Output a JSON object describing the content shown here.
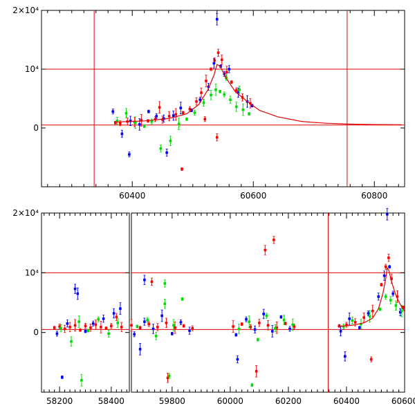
{
  "chart_data": [
    {
      "type": "scatter",
      "title": "",
      "xlabel": "",
      "ylabel": "",
      "grid": false,
      "xlim": [
        60250,
        60850
      ],
      "ylim": [
        -10000,
        20000
      ],
      "x_ticks": [
        60400,
        60600,
        60800
      ],
      "y_ticks": [
        0,
        10000,
        20000
      ],
      "y_tick_labels": [
        "0",
        "10⁴",
        "2×10⁴"
      ],
      "reference_lines": {
        "horizontal": [
          10000,
          500
        ],
        "vertical": [
          60337,
          60755
        ],
        "color": "#e00000"
      },
      "model_curve": {
        "color": "#e00000",
        "x": [
          60370,
          60420,
          60460,
          60490,
          60510,
          60525,
          60535,
          60540,
          60545,
          60555,
          60570,
          60590,
          60610,
          60640,
          60680,
          60720,
          60760,
          60800,
          60845
        ],
        "y": [
          1000,
          1200,
          1600,
          2400,
          4000,
          6500,
          9000,
          10800,
          10500,
          8500,
          6200,
          4500,
          3000,
          1900,
          1100,
          800,
          650,
          580,
          550
        ]
      },
      "series": [
        {
          "color": "#ff0000",
          "x": [
            60372,
            60380,
            60392,
            60404,
            60415,
            60426,
            60438,
            60450,
            60461,
            60472,
            60484,
            60495,
            60506,
            60514,
            60522,
            60530,
            60536,
            60542,
            60548,
            60556,
            60564,
            60572,
            60582,
            60595,
            60445,
            60482,
            60520,
            60540
          ],
          "y": [
            900,
            800,
            1100,
            1000,
            1300,
            1200,
            1500,
            1400,
            2000,
            2300,
            2600,
            3200,
            4500,
            6000,
            8000,
            10000,
            11500,
            12800,
            11600,
            9500,
            7800,
            6400,
            5200,
            4200,
            3500,
            -7000,
            1500,
            -1600
          ]
        },
        {
          "color": "#0000ff",
          "x": [
            60368,
            60383,
            60397,
            60412,
            60427,
            60440,
            60452,
            60468,
            60480,
            60498,
            60512,
            60526,
            60535,
            60540,
            60546,
            60552,
            60560,
            60575,
            60590,
            60598,
            60395,
            60457
          ],
          "y": [
            2800,
            -1000,
            1200,
            600,
            2800,
            2000,
            1600,
            2100,
            3400,
            3000,
            4800,
            7000,
            11000,
            18500,
            10500,
            9200,
            10000,
            6000,
            4500,
            3800,
            -4500,
            -4200
          ]
        },
        {
          "color": "#00dd00",
          "x": [
            60375,
            60390,
            60405,
            60420,
            60432,
            60447,
            60463,
            60477,
            60490,
            60503,
            60518,
            60530,
            60538,
            60545,
            60552,
            60562,
            60572,
            60583,
            60593,
            60555,
            60577
          ],
          "y": [
            1200,
            2500,
            900,
            300,
            1100,
            -3500,
            -2200,
            700,
            1500,
            2600,
            4300,
            5600,
            6500,
            6200,
            5700,
            4800,
            3600,
            3100,
            2400,
            8500,
            6500
          ]
        }
      ]
    },
    {
      "type": "scatter",
      "title": "",
      "xlabel": "",
      "ylabel": "",
      "grid": false,
      "ylim": [
        -10000,
        20000
      ],
      "y_ticks": [
        0,
        10000,
        20000
      ],
      "y_tick_labels": [
        "0",
        "10⁴",
        "2×10⁴"
      ],
      "x_ticks_panel_a": [
        58200,
        58400
      ],
      "x_ticks_panel_b": [
        59800,
        60000,
        60200,
        60400,
        60600
      ],
      "x_segments": [
        {
          "xlim": [
            58130,
            58470
          ]
        },
        {
          "xlim": [
            59660,
            60600
          ]
        }
      ],
      "reference_lines": {
        "horizontal": [
          10000,
          500
        ],
        "vertical": [
          60337
        ],
        "color": "#e00000"
      },
      "model_curve": {
        "color": "#e00000",
        "x": [
          60370,
          60420,
          60460,
          60490,
          60510,
          60525,
          60535,
          60540,
          60545,
          60555,
          60570,
          60585,
          60600
        ],
        "y": [
          1000,
          1200,
          1600,
          2400,
          4000,
          6500,
          9000,
          10800,
          10500,
          8500,
          6200,
          4700,
          3500
        ]
      },
      "series": [
        {
          "color": "#ff0000",
          "x": [
            58180,
            58200,
            58220,
            58240,
            58260,
            58280,
            58300,
            58320,
            58340,
            58360,
            58380,
            58400,
            58420,
            58440,
            59660,
            59690,
            59720,
            59750,
            59780,
            59810,
            59840,
            59870,
            59730,
            59785,
            60010,
            60040,
            60070,
            60100,
            60130,
            60160,
            60190,
            60220,
            60150,
            60120,
            60090,
            60375,
            60400,
            60430,
            60460,
            60490,
            60520,
            60535,
            60545,
            60555,
            60575,
            60595,
            60485
          ],
          "y": [
            800,
            1000,
            600,
            900,
            1200,
            400,
            1100,
            800,
            1300,
            900,
            700,
            1100,
            2600,
            900,
            1200,
            800,
            1400,
            900,
            1600,
            800,
            1100,
            700,
            8500,
            -7600,
            1000,
            1400,
            900,
            1600,
            1200,
            800,
            1500,
            1000,
            15500,
            13800,
            -6500,
            1100,
            1300,
            1700,
            2500,
            3600,
            8000,
            11000,
            12500,
            9000,
            6000,
            4200,
            -4500
          ]
        },
        {
          "color": "#0000ff",
          "x": [
            58190,
            58230,
            58260,
            58270,
            58300,
            58330,
            58370,
            58410,
            58435,
            58210,
            59670,
            59705,
            59735,
            59765,
            59800,
            59830,
            59860,
            59705,
            59690,
            60020,
            60055,
            60085,
            60115,
            60145,
            60175,
            60205,
            60025,
            60380,
            60410,
            60445,
            60475,
            60510,
            60530,
            60540,
            60548,
            60560,
            60585,
            60395
          ],
          "y": [
            -200,
            1500,
            7300,
            6500,
            200,
            1500,
            2300,
            3200,
            4000,
            -7500,
            -300,
            1800,
            600,
            2800,
            -200,
            1700,
            300,
            8800,
            -2800,
            -400,
            2200,
            500,
            3100,
            200,
            2600,
            600,
            -4500,
            200,
            2300,
            800,
            3200,
            6000,
            9500,
            19800,
            11000,
            6500,
            3400,
            -4000
          ]
        },
        {
          "color": "#00dd00",
          "x": [
            58205,
            58245,
            58275,
            58310,
            58350,
            58390,
            58425,
            58285,
            59680,
            59715,
            59745,
            59775,
            59805,
            59835,
            59790,
            59775,
            60030,
            60065,
            60095,
            60125,
            60155,
            60185,
            60215,
            60075,
            60390,
            60420,
            60450,
            60480,
            60515,
            60535,
            60552,
            60570,
            60590
          ],
          "y": [
            700,
            -1500,
            1800,
            300,
            2200,
            -200,
            1600,
            -8000,
            1000,
            2100,
            -600,
            4800,
            1200,
            5600,
            -7300,
            8200,
            600,
            1800,
            -1200,
            2800,
            700,
            2100,
            1300,
            -8800,
            1000,
            2000,
            1400,
            2700,
            3900,
            6000,
            5400,
            4500,
            3600
          ]
        }
      ]
    }
  ]
}
